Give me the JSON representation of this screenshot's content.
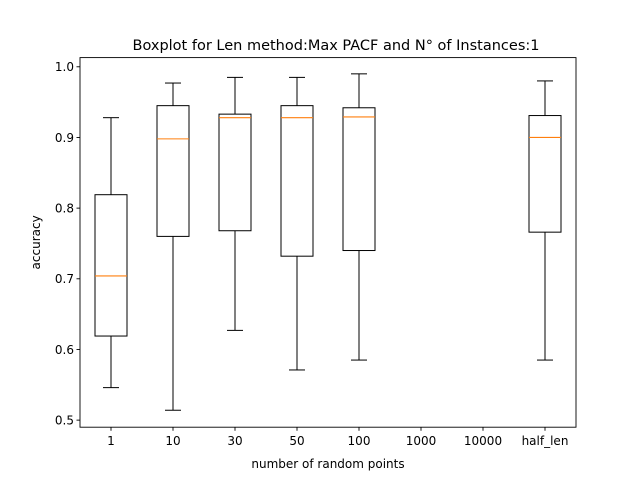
{
  "chart_data": {
    "type": "box",
    "title": "Boxplot for Len method:Max PACF and N° of Instances:1",
    "xlabel": "number of random points",
    "ylabel": "accuracy",
    "categories": [
      "1",
      "10",
      "30",
      "50",
      "100",
      "1000",
      "10000",
      "half_len"
    ],
    "ylim": [
      0.49,
      1.013
    ],
    "yticks": [
      "0.5",
      "0.6",
      "0.7",
      "0.8",
      "0.9",
      "1.0"
    ],
    "grid": false,
    "colors": {
      "box": "#000000",
      "median": "#ff7f0e"
    },
    "boxes": [
      {
        "category": "1",
        "min": 0.546,
        "q1": 0.619,
        "median": 0.704,
        "q3": 0.819,
        "max": 0.928
      },
      {
        "category": "10",
        "min": 0.514,
        "q1": 0.76,
        "median": 0.898,
        "q3": 0.945,
        "max": 0.977
      },
      {
        "category": "30",
        "min": 0.627,
        "q1": 0.768,
        "median": 0.928,
        "q3": 0.933,
        "max": 0.985
      },
      {
        "category": "50",
        "min": 0.571,
        "q1": 0.732,
        "median": 0.928,
        "q3": 0.945,
        "max": 0.985
      },
      {
        "category": "100",
        "min": 0.585,
        "q1": 0.74,
        "median": 0.929,
        "q3": 0.942,
        "max": 0.99
      },
      {
        "category": "1000",
        "min": null,
        "q1": null,
        "median": null,
        "q3": null,
        "max": null
      },
      {
        "category": "10000",
        "min": null,
        "q1": null,
        "median": null,
        "q3": null,
        "max": null
      },
      {
        "category": "half_len",
        "min": 0.585,
        "q1": 0.766,
        "median": 0.9,
        "q3": 0.931,
        "max": 0.98
      }
    ]
  }
}
